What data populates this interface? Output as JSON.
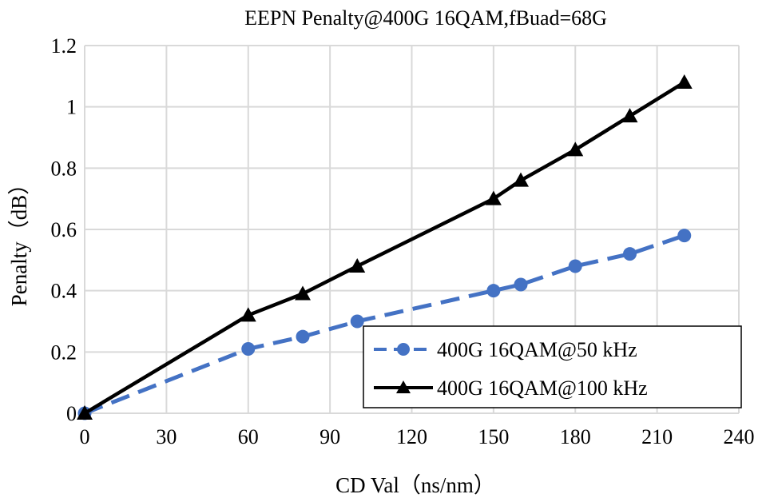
{
  "chart_data": {
    "type": "line",
    "title": "EEPN Penalty@400G 16QAM,fBuad=68G",
    "xlabel": "CD Val（ns/nm）",
    "ylabel": "Penalty（dB）",
    "xlim": [
      0,
      240
    ],
    "ylim": [
      0,
      1.2
    ],
    "xticks": [
      0,
      30,
      60,
      90,
      120,
      150,
      180,
      210,
      240
    ],
    "yticks": [
      0,
      0.2,
      0.4,
      0.6,
      0.8,
      1,
      1.2
    ],
    "xtick_labels": [
      "0",
      "30",
      "60",
      "90",
      "120",
      "150",
      "180",
      "210",
      "240"
    ],
    "ytick_labels": [
      "0",
      "0.2",
      "0.4",
      "0.6",
      "0.8",
      "1",
      "1.2"
    ],
    "grid": true,
    "legend_position": "bottom-right",
    "series": [
      {
        "name": "400G 16QAM@50 kHz",
        "color": "#4472C4",
        "style": "dashed",
        "marker": "circle",
        "x": [
          0,
          60,
          80,
          100,
          150,
          160,
          180,
          200,
          220
        ],
        "y": [
          0,
          0.21,
          0.25,
          0.3,
          0.4,
          0.42,
          0.48,
          0.52,
          0.58
        ]
      },
      {
        "name": "400G 16QAM@100 kHz",
        "color": "#000000",
        "style": "solid",
        "marker": "triangle",
        "x": [
          0,
          60,
          80,
          100,
          150,
          160,
          180,
          200,
          220
        ],
        "y": [
          0,
          0.32,
          0.39,
          0.48,
          0.7,
          0.76,
          0.86,
          0.97,
          1.08
        ]
      }
    ]
  }
}
